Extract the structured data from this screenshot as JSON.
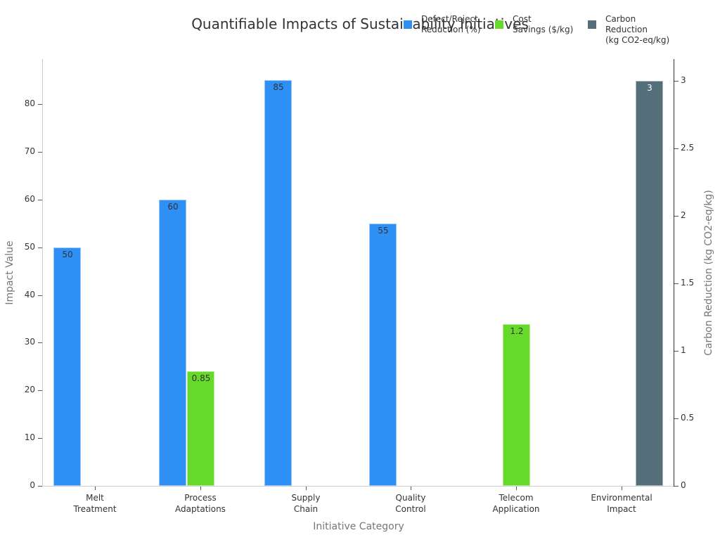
{
  "chart_data": {
    "type": "bar",
    "title": "Quantifiable Impacts of Sustainability Initiatives",
    "xlabel": "Initiative Category",
    "ylabel": "Impact Value",
    "y2label": "Carbon Reduction (kg CO2-eq/kg)",
    "categories": [
      "Melt\nTreatment",
      "Process\nAdaptations",
      "Supply\nChain",
      "Quality\nControl",
      "Telecom\nApplication",
      "Environmental\nImpact"
    ],
    "category_lines": [
      [
        "Melt",
        "Treatment"
      ],
      [
        "Process",
        "Adaptations"
      ],
      [
        "Supply",
        "Chain"
      ],
      [
        "Quality",
        "Control"
      ],
      [
        "Telecom",
        "Application"
      ],
      [
        "Environmental",
        "Impact"
      ]
    ],
    "series": [
      {
        "name": "Defect/Reject Reduction (%)",
        "axis": "left",
        "color": "#2e8ff5",
        "values": [
          50,
          60,
          85,
          55,
          null,
          null
        ]
      },
      {
        "name": "Cost Savings ($/kg)",
        "axis": "right",
        "color": "#67d92a",
        "values": [
          null,
          0.85,
          null,
          null,
          1.2,
          null
        ]
      },
      {
        "name": "Carbon Reduction (kg CO2-eq/kg)",
        "axis": "right",
        "color": "#546e7a",
        "values": [
          null,
          null,
          null,
          null,
          null,
          3
        ]
      }
    ],
    "ylim": [
      0,
      89
    ],
    "yticks": [
      0,
      10,
      20,
      30,
      40,
      50,
      60,
      70,
      80
    ],
    "y2lim": [
      0,
      3.15
    ],
    "y2ticks": [
      "0",
      "0.5",
      "1",
      "1.5",
      "2",
      "2.5",
      "3"
    ],
    "legend_position": "top-right",
    "grid": false
  },
  "legend": [
    {
      "lines": [
        "Defect/Reject",
        "Reduction (%)"
      ],
      "color": "#2e8ff5"
    },
    {
      "lines": [
        "Cost",
        "Savings ($/kg)"
      ],
      "color": "#67d92a"
    },
    {
      "lines": [
        "Carbon",
        "Reduction",
        "(kg CO2-eq/kg)"
      ],
      "color": "#546e7a"
    }
  ]
}
